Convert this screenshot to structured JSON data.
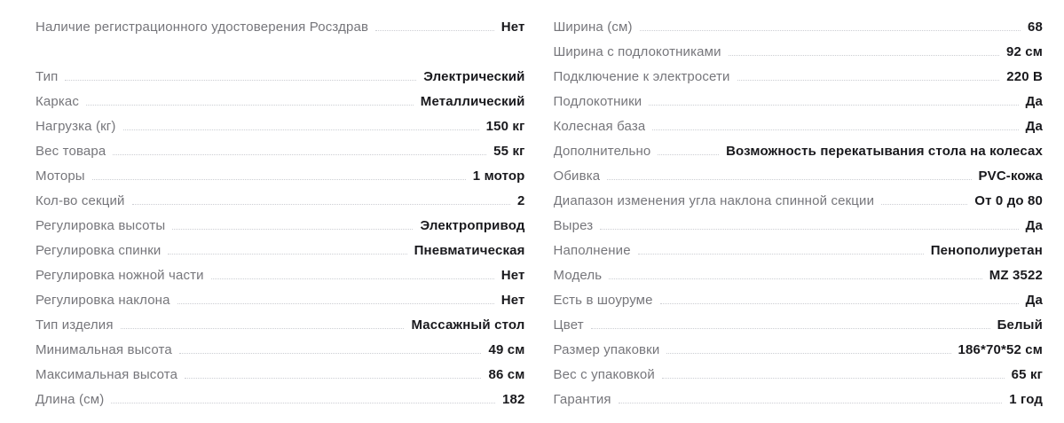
{
  "colors": {
    "background": "#ffffff",
    "label": "#76767b",
    "value": "#19191d",
    "leader": "#ccced3"
  },
  "specifications": {
    "left": [
      {
        "label": "Наличие регистрационного удостоверения Росздрав",
        "value": "Нет"
      },
      {
        "label": "",
        "value": ""
      },
      {
        "label": "Тип",
        "value": "Электрический"
      },
      {
        "label": "Каркас",
        "value": "Металлический"
      },
      {
        "label": "Нагрузка (кг)",
        "value": "150 кг"
      },
      {
        "label": "Вес товара",
        "value": "55 кг"
      },
      {
        "label": "Моторы",
        "value": "1 мотор"
      },
      {
        "label": "Кол-во секций",
        "value": "2"
      },
      {
        "label": "Регулировка высоты",
        "value": "Электропривод"
      },
      {
        "label": "Регулировка спинки",
        "value": "Пневматическая"
      },
      {
        "label": "Регулировка ножной части",
        "value": "Нет"
      },
      {
        "label": "Регулировка наклона",
        "value": "Нет"
      },
      {
        "label": "Тип изделия",
        "value": "Массажный стол"
      },
      {
        "label": "Минимальная высота",
        "value": "49 см"
      },
      {
        "label": "Максимальная высота",
        "value": "86 см"
      },
      {
        "label": "Длина (см)",
        "value": "182"
      }
    ],
    "right": [
      {
        "label": "Ширина (см)",
        "value": "68"
      },
      {
        "label": "Ширина с подлокотниками",
        "value": "92 см"
      },
      {
        "label": "Подключение к электросети",
        "value": "220 В"
      },
      {
        "label": "Подлокотники",
        "value": "Да"
      },
      {
        "label": "Колесная база",
        "value": "Да"
      },
      {
        "label": "Дополнительно",
        "value": "Возможность перекатывания стола на колесах"
      },
      {
        "label": "Обивка",
        "value": "PVC-кожа"
      },
      {
        "label": "Диапазон изменения угла наклона спинной секции",
        "value": "От 0 до 80"
      },
      {
        "label": "Вырез",
        "value": "Да"
      },
      {
        "label": "Наполнение",
        "value": "Пенополиуретан"
      },
      {
        "label": "Модель",
        "value": "MZ 3522"
      },
      {
        "label": "Есть в шоуруме",
        "value": "Да"
      },
      {
        "label": "Цвет",
        "value": "Белый"
      },
      {
        "label": "Размер упаковки",
        "value": "186*70*52 см"
      },
      {
        "label": "Вес с упаковкой",
        "value": "65 кг"
      },
      {
        "label": "Гарантия",
        "value": "1 год"
      }
    ]
  }
}
